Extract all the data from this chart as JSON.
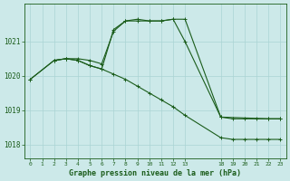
{
  "title": "Graphe pression niveau de la mer (hPa)",
  "bg_color": "#cce9e9",
  "grid_color": "#aad4d4",
  "line_color": "#1a5c1a",
  "ylim": [
    1017.6,
    1022.1
  ],
  "yticks": [
    1018,
    1019,
    1020,
    1021
  ],
  "xtick_positions": [
    0,
    1,
    2,
    3,
    4,
    5,
    6,
    7,
    8,
    9,
    10,
    11,
    12,
    13,
    18,
    19,
    20,
    21,
    22,
    23
  ],
  "xtick_labels": [
    "0",
    "1",
    "2",
    "3",
    "4",
    "5",
    "6",
    "7",
    "8",
    "9",
    "10",
    "11",
    "12",
    "13",
    "18",
    "19",
    "20",
    "21",
    "22",
    "23"
  ],
  "xlim": [
    -0.3,
    23.3
  ],
  "line1_x": [
    0,
    2,
    3,
    4,
    5,
    6,
    7,
    8,
    9,
    10,
    11,
    12,
    13,
    18,
    22,
    23
  ],
  "line1_y": [
    1019.9,
    1020.45,
    1020.5,
    1020.5,
    1020.45,
    1020.35,
    1021.3,
    1021.6,
    1021.65,
    1021.6,
    1021.6,
    1021.65,
    1021.0,
    1018.8,
    1018.75,
    1018.75
  ],
  "line2_x": [
    2,
    3,
    4,
    5,
    6,
    7,
    8,
    9,
    10,
    11,
    12,
    13,
    18,
    19,
    20,
    21,
    22,
    23
  ],
  "line2_y": [
    1020.45,
    1020.5,
    1020.45,
    1020.3,
    1020.2,
    1020.05,
    1019.9,
    1019.7,
    1019.5,
    1019.3,
    1019.1,
    1018.85,
    1018.2,
    1018.15,
    1018.15,
    1018.15,
    1018.15,
    1018.15
  ],
  "line3_x": [
    0,
    2,
    3,
    4,
    5,
    6,
    7,
    8,
    9,
    10,
    11,
    12,
    13,
    18,
    19,
    20,
    21,
    22,
    23
  ],
  "line3_y": [
    1019.9,
    1020.45,
    1020.5,
    1020.45,
    1020.3,
    1020.2,
    1021.35,
    1021.6,
    1021.6,
    1021.6,
    1021.6,
    1021.65,
    1021.65,
    1018.8,
    1018.75,
    1018.75,
    1018.75,
    1018.75,
    1018.75
  ]
}
